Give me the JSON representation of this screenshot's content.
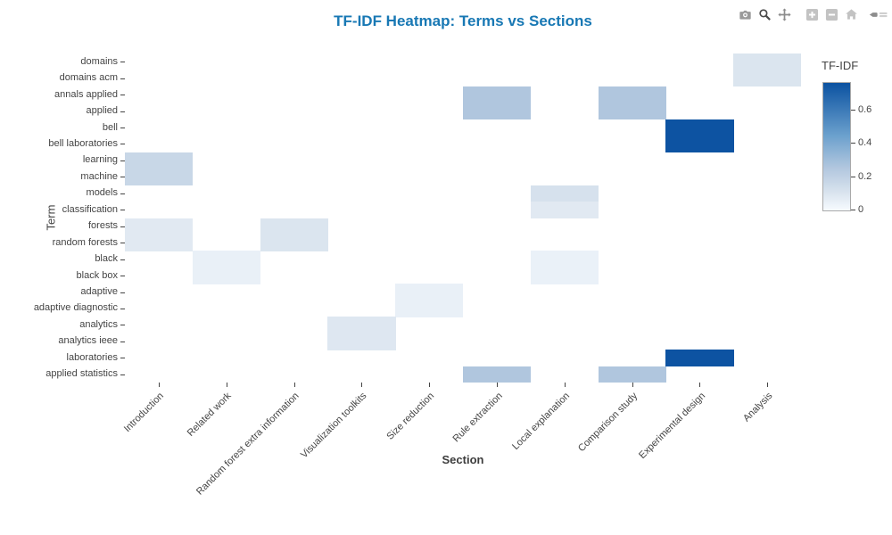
{
  "title": "TF-IDF Heatmap: Terms vs Sections",
  "title_color": "#1878b4",
  "modebar": {
    "icons": [
      "camera-icon",
      "zoom-icon",
      "pan-icon",
      "zoom-in-icon",
      "zoom-out-icon",
      "home-icon",
      "plotly-logo-icon"
    ]
  },
  "chart_data": {
    "type": "heatmap",
    "title": "TF-IDF Heatmap: Terms vs Sections",
    "xlabel": "Section",
    "ylabel": "Term",
    "colorbar_title": "TF-IDF",
    "zmin": 0,
    "zmax": 0.765,
    "colorbar_ticks": [
      {
        "value": 0,
        "label": "0"
      },
      {
        "value": 0.2,
        "label": "0.2"
      },
      {
        "value": 0.4,
        "label": "0.4"
      },
      {
        "value": 0.6,
        "label": "0.6"
      }
    ],
    "colorscale": [
      [
        0,
        "#f7fbff"
      ],
      [
        0.1,
        "#dbe5ef"
      ],
      [
        0.17,
        "#c8d7e7"
      ],
      [
        0.26,
        "#b0c6de"
      ],
      [
        0.45,
        "#6ba0cd"
      ],
      [
        0.765,
        "#0b52a1"
      ]
    ],
    "x_categories": [
      "Introduction",
      "Related work",
      "Random forest extra information",
      "Visualization toolkits",
      "Size reduction",
      "Rule extraction",
      "Local explanation",
      "Comparison study",
      "Experimental design",
      "Analysis"
    ],
    "y_categories": [
      "domains",
      "domains acm",
      "annals applied",
      "applied",
      "bell",
      "bell laboratories",
      "learning",
      "machine",
      "models",
      "classification",
      "forests",
      "random forests",
      "black",
      "black box",
      "adaptive",
      "adaptive diagnostic",
      "analytics",
      "analytics ieee",
      "laboratories",
      "applied statistics"
    ],
    "cells": [
      {
        "term": "domains",
        "section": "Analysis",
        "value": 0.1
      },
      {
        "term": "domains acm",
        "section": "Analysis",
        "value": 0.1
      },
      {
        "term": "annals applied",
        "section": "Rule extraction",
        "value": 0.26
      },
      {
        "term": "annals applied",
        "section": "Comparison study",
        "value": 0.26
      },
      {
        "term": "applied",
        "section": "Rule extraction",
        "value": 0.26
      },
      {
        "term": "applied",
        "section": "Comparison study",
        "value": 0.26
      },
      {
        "term": "bell",
        "section": "Experimental design",
        "value": 0.76
      },
      {
        "term": "bell laboratories",
        "section": "Experimental design",
        "value": 0.76
      },
      {
        "term": "learning",
        "section": "Introduction",
        "value": 0.17
      },
      {
        "term": "machine",
        "section": "Introduction",
        "value": 0.17
      },
      {
        "term": "models",
        "section": "Local explanation",
        "value": 0.12
      },
      {
        "term": "classification",
        "section": "Local explanation",
        "value": 0.08
      },
      {
        "term": "forests",
        "section": "Introduction",
        "value": 0.08
      },
      {
        "term": "random forests",
        "section": "Introduction",
        "value": 0.08
      },
      {
        "term": "forests",
        "section": "Random forest extra information",
        "value": 0.1
      },
      {
        "term": "random forests",
        "section": "Random forest extra information",
        "value": 0.1
      },
      {
        "term": "black",
        "section": "Related work",
        "value": 0.05
      },
      {
        "term": "black box",
        "section": "Related work",
        "value": 0.05
      },
      {
        "term": "black",
        "section": "Local explanation",
        "value": 0.045
      },
      {
        "term": "black box",
        "section": "Local explanation",
        "value": 0.045
      },
      {
        "term": "adaptive",
        "section": "Size reduction",
        "value": 0.05
      },
      {
        "term": "adaptive diagnostic",
        "section": "Size reduction",
        "value": 0.05
      },
      {
        "term": "analytics",
        "section": "Visualization toolkits",
        "value": 0.09
      },
      {
        "term": "analytics ieee",
        "section": "Visualization toolkits",
        "value": 0.09
      },
      {
        "term": "laboratories",
        "section": "Experimental design",
        "value": 0.76
      },
      {
        "term": "applied statistics",
        "section": "Rule extraction",
        "value": 0.26
      },
      {
        "term": "applied statistics",
        "section": "Comparison study",
        "value": 0.26
      }
    ]
  }
}
